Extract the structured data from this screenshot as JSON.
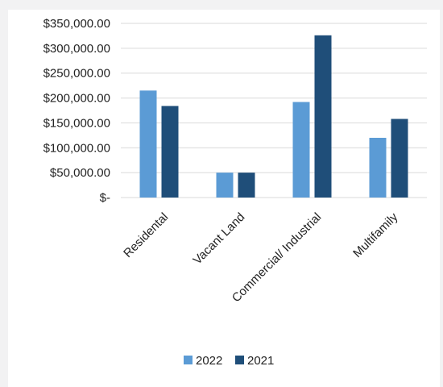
{
  "chart_data": {
    "type": "bar",
    "categories": [
      "Residental",
      "Vacant Land",
      "Commercial/ Industrial",
      "Multifamily"
    ],
    "series": [
      {
        "name": "2022",
        "color": "#5b9bd5",
        "values": [
          215000,
          50000,
          192000,
          120000
        ]
      },
      {
        "name": "2021",
        "color": "#1f4e79",
        "values": [
          184000,
          50000,
          326000,
          158000
        ]
      }
    ],
    "y_ticks": [
      0,
      50000,
      100000,
      150000,
      200000,
      250000,
      300000,
      350000
    ],
    "y_tick_labels": [
      "$-",
      "$50,000.00",
      "$100,000.00",
      "$150,000.00",
      "$200,000.00",
      "$250,000.00",
      "$300,000.00",
      "$350,000.00"
    ],
    "ylim": [
      0,
      350000
    ],
    "grid": true,
    "legend_position": "bottom"
  }
}
